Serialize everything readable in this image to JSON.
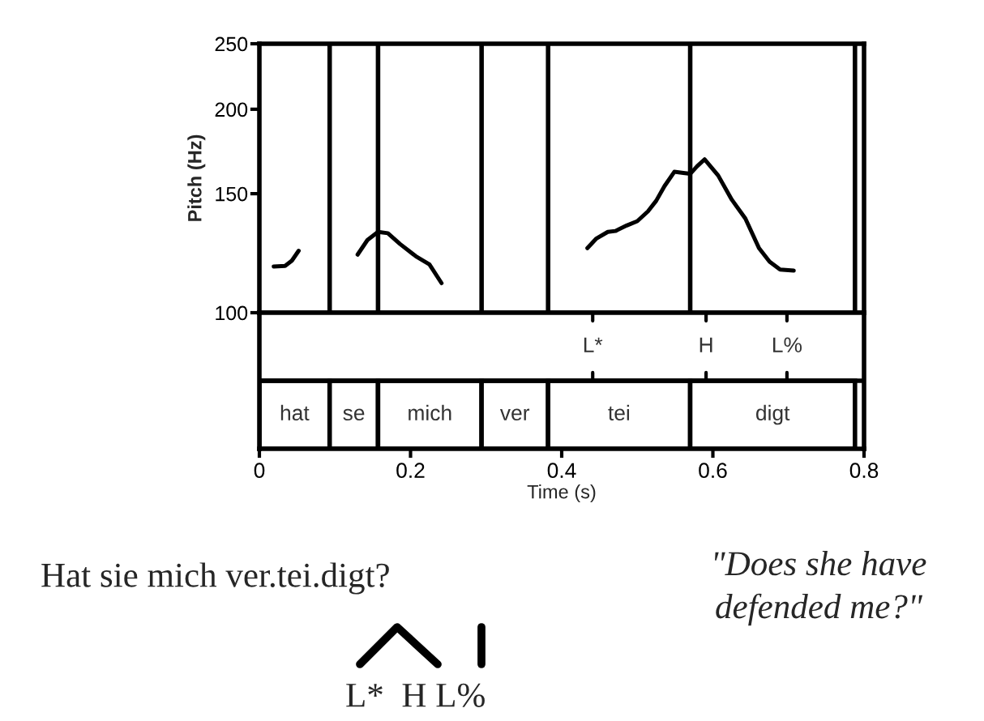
{
  "chart_data": [
    {
      "type": "line",
      "ylabel": "Pitch (Hz)",
      "log": true,
      "xlim": [
        0,
        0.8
      ],
      "ylim": [
        100,
        250
      ],
      "yticks": [
        100,
        150,
        200,
        250
      ],
      "tick_labels": "y",
      "grid": false,
      "marker": "none",
      "line_style": "solid",
      "series": [
        {
          "color": "#000000",
          "x": [
            0.019,
            0.034,
            0.043,
            0.052
          ],
          "values": [
            117,
            117.3,
            119.4,
            123.5
          ]
        },
        {
          "color": "#000000",
          "x": [
            0.13,
            0.143,
            0.157,
            0.17,
            0.186,
            0.207,
            0.225,
            0.241
          ],
          "values": [
            121.9,
            128.1,
            131.7,
            131.1,
            126.4,
            121.2,
            117.9,
            110.6
          ]
        },
        {
          "color": "#000000",
          "x": [
            0.434,
            0.446,
            0.461,
            0.471,
            0.486,
            0.5,
            0.514,
            0.525,
            0.536,
            0.549,
            0.561,
            0.57,
            0.579,
            0.589,
            0.607,
            0.625,
            0.643,
            0.661,
            0.675,
            0.689,
            0.707
          ],
          "values": [
            124.6,
            128.8,
            131.7,
            132.1,
            134.6,
            136.6,
            141.2,
            146.4,
            153.9,
            161.6,
            161.0,
            160.5,
            164.6,
            168.6,
            159.6,
            147,
            137.8,
            124.6,
            119,
            115.8,
            115.4
          ]
        }
      ],
      "ref_lines": [
        {
          "axis": "x",
          "value": 0.093,
          "color": "#000000"
        },
        {
          "axis": "x",
          "value": 0.157,
          "color": "#000000"
        },
        {
          "axis": "x",
          "value": 0.294,
          "color": "#000000"
        },
        {
          "axis": "x",
          "value": 0.382,
          "color": "#000000"
        },
        {
          "axis": "x",
          "value": 0.57,
          "color": "#000000"
        },
        {
          "axis": "x",
          "value": 0.788,
          "color": "#000000"
        }
      ]
    },
    {
      "type": "bar",
      "orientation": "horizontal",
      "stacked": true,
      "categories": [
        null,
        null
      ],
      "xlabel": "Time (s)",
      "xlim": [
        0,
        0.8
      ],
      "xticks": [
        0,
        0.2,
        0.4,
        0.6,
        0.8
      ],
      "tick_labels": "x",
      "series": [
        {
          "color": "#ffffff",
          "values": [
            null,
            0.093
          ],
          "value_labels": [
            null,
            "hat"
          ]
        },
        {
          "color": "#ffffff",
          "values": [
            null,
            0.064
          ],
          "value_labels": [
            null,
            "se"
          ]
        },
        {
          "color": "#ffffff",
          "values": [
            null,
            0.137
          ],
          "value_labels": [
            null,
            "mich"
          ]
        },
        {
          "color": "#ffffff",
          "values": [
            null,
            0.088
          ],
          "value_labels": [
            null,
            "ver"
          ]
        },
        {
          "color": "#ffffff",
          "values": [
            null,
            0.188
          ],
          "value_labels": [
            null,
            "tei"
          ]
        },
        {
          "color": "#ffffff",
          "values": [
            null,
            0.218
          ],
          "value_labels": [
            null,
            "digt"
          ]
        }
      ],
      "ref_lines": [
        {
          "axis": "x",
          "value": 0.441,
          "label": "L*"
        },
        {
          "axis": "x",
          "value": 0.591,
          "label": "H"
        },
        {
          "axis": "x",
          "value": 0.698,
          "label": "L%"
        }
      ]
    },
    {
      "type": "other",
      "annotations": [
        "Hat sie mich ver.tei.digt?",
        "\"Does she have\ndefended me?\"",
        "L*  H L%"
      ]
    }
  ]
}
